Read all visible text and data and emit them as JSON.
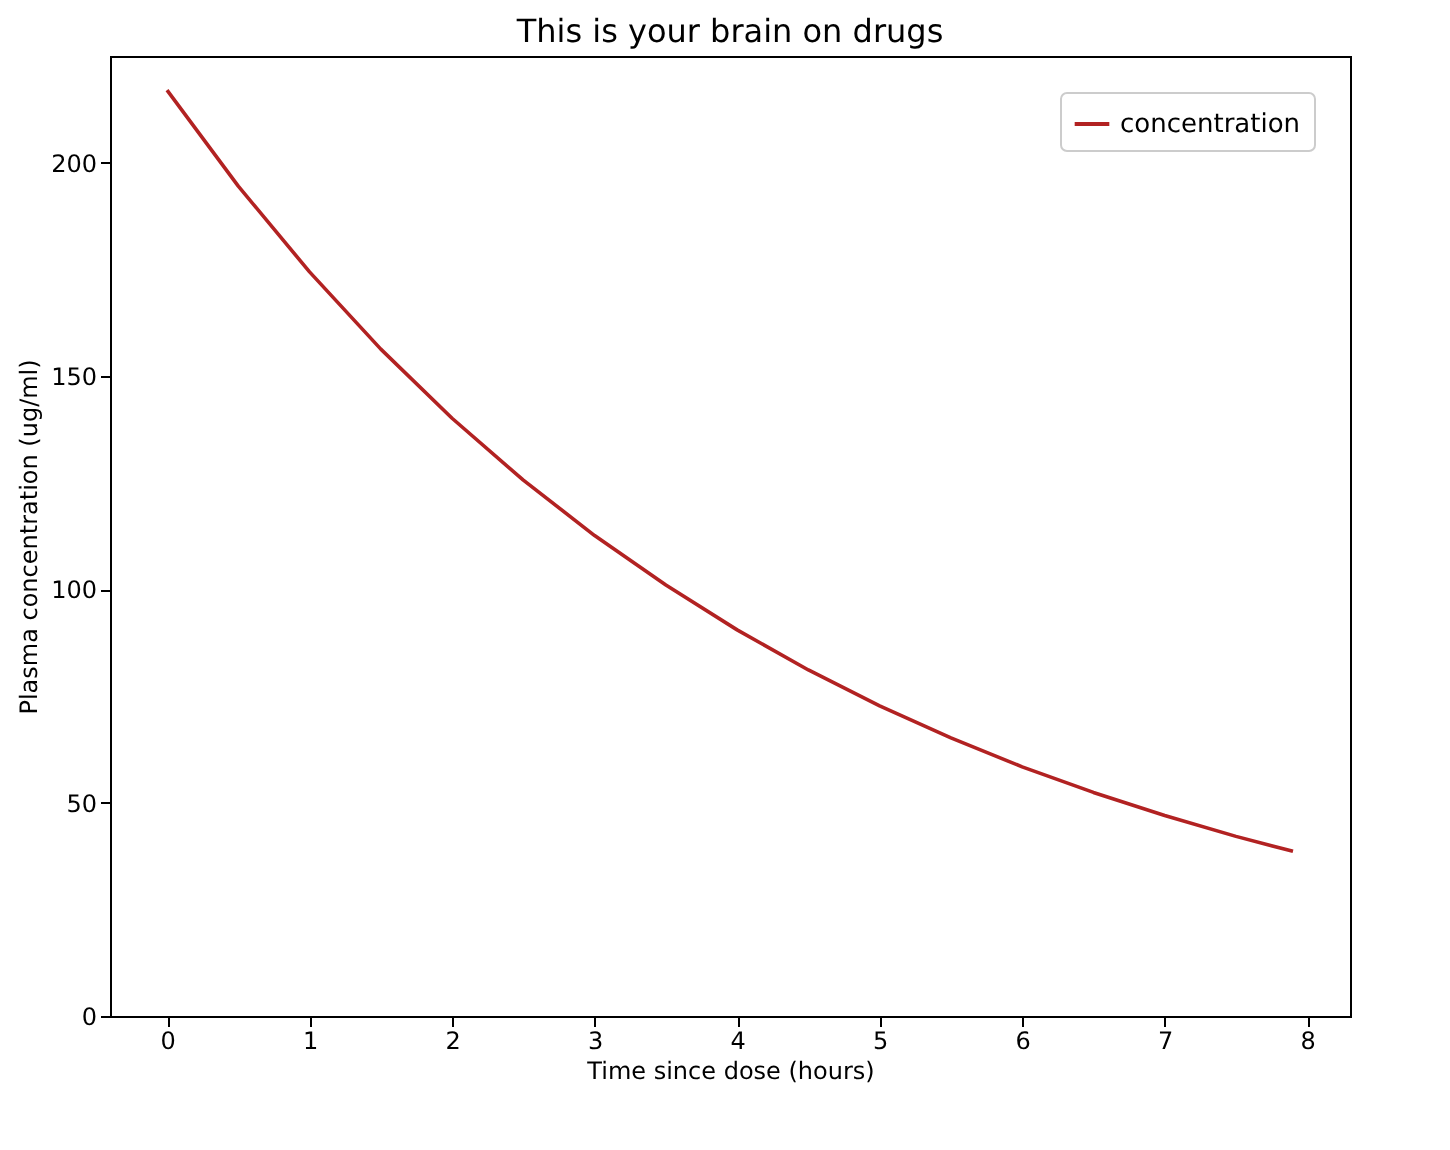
{
  "chart_data": {
    "type": "line",
    "title": "This is your brain on drugs",
    "xlabel": "Time since dose (hours)",
    "ylabel": "Plasma concentration (ug/ml)",
    "x": [
      0,
      0.5,
      1,
      1.5,
      2,
      2.5,
      3,
      3.5,
      4,
      4.5,
      5,
      5.5,
      6,
      6.5,
      7,
      7.5,
      7.9
    ],
    "series": [
      {
        "name": "concentration",
        "color": "#b22222",
        "values": [
          217,
          194.5,
          174.4,
          156.3,
          140.1,
          125.6,
          112.6,
          101,
          90.5,
          81.1,
          72.7,
          65.2,
          58.4,
          52.4,
          47,
          42.1,
          38.6
        ]
      }
    ],
    "xlim": [
      -0.4,
      8.3
    ],
    "xticks": [
      0,
      1,
      2,
      3,
      4,
      5,
      6,
      7,
      8
    ],
    "ylim": [
      0,
      225
    ],
    "yticks": [
      0,
      50,
      100,
      150,
      200
    ],
    "grid": false,
    "legend": "top right",
    "marker": "none",
    "line_style": "solid"
  }
}
